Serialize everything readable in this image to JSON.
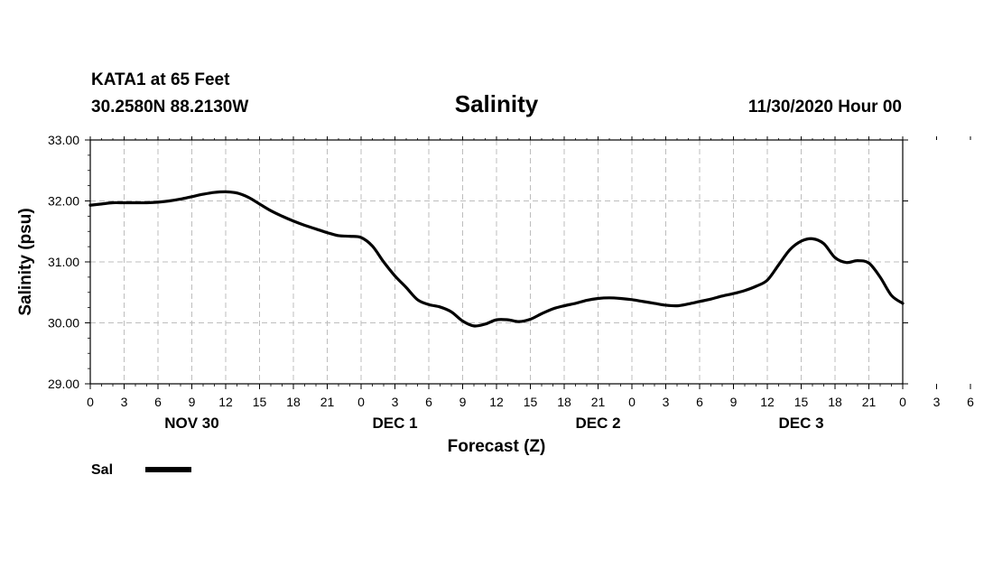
{
  "header": {
    "station": "KATA1 at 65 Feet",
    "coords": "30.2580N 88.2130W",
    "title": "Salinity",
    "run": "11/30/2020 Hour 00"
  },
  "legend": {
    "label": "Sal"
  },
  "chart_data": {
    "type": "line",
    "title": "Salinity",
    "xlabel": "Forecast (Z)",
    "ylabel": "Salinity (psu)",
    "ylim": [
      29.0,
      33.0
    ],
    "yticks": [
      "29.00",
      "30.00",
      "31.00",
      "32.00",
      "33.00"
    ],
    "xlim": [
      0,
      72
    ],
    "xtick_labels": [
      "0",
      "3",
      "6",
      "9",
      "12",
      "15",
      "18",
      "21",
      "0",
      "3",
      "6",
      "9",
      "12",
      "15",
      "18",
      "21",
      "0",
      "3",
      "6",
      "9",
      "12",
      "15",
      "18",
      "21",
      "0",
      "3",
      "6",
      "9",
      "12",
      "15",
      "18",
      "21",
      "0"
    ],
    "day_labels": [
      {
        "label": "NOV 30",
        "hour": 9
      },
      {
        "label": "DEC 1",
        "hour": 27
      },
      {
        "label": "DEC 2",
        "hour": 45
      },
      {
        "label": "DEC 3",
        "hour": 63
      }
    ],
    "grid": true,
    "legend_position": "bottom-left",
    "series": [
      {
        "name": "Sal",
        "color": "#000000",
        "x": [
          0,
          1,
          2,
          3,
          4,
          5,
          6,
          7,
          8,
          9,
          10,
          11,
          12,
          13,
          14,
          15,
          16,
          17,
          18,
          19,
          20,
          21,
          22,
          23,
          24,
          25,
          26,
          27,
          28,
          29,
          30,
          31,
          32,
          33,
          34,
          35,
          36,
          37,
          38,
          39,
          40,
          41,
          42,
          43,
          44,
          45,
          46,
          47,
          48,
          49,
          50,
          51,
          52,
          53,
          54,
          55,
          56,
          57,
          58,
          59,
          60,
          61,
          62,
          63,
          64,
          65,
          66,
          67,
          68,
          69,
          70,
          71,
          72
        ],
        "values": [
          31.93,
          31.95,
          31.97,
          31.97,
          31.97,
          31.97,
          31.98,
          32.0,
          32.03,
          32.07,
          32.11,
          32.14,
          32.15,
          32.13,
          32.06,
          31.95,
          31.84,
          31.75,
          31.67,
          31.6,
          31.54,
          31.48,
          31.43,
          31.42,
          31.4,
          31.26,
          31.0,
          30.77,
          30.58,
          30.38,
          30.3,
          30.26,
          30.18,
          30.03,
          29.95,
          29.98,
          30.05,
          30.05,
          30.02,
          30.06,
          30.15,
          30.23,
          30.28,
          30.32,
          30.37,
          30.4,
          30.41,
          30.4,
          30.38,
          30.35,
          30.32,
          30.29,
          30.28,
          30.31,
          30.35,
          30.39,
          30.44,
          30.48,
          30.53,
          30.6,
          30.7,
          30.95,
          31.2,
          31.34,
          31.38,
          31.3,
          31.07,
          30.99,
          31.02,
          30.98,
          30.75,
          30.45,
          30.32
        ]
      }
    ]
  }
}
